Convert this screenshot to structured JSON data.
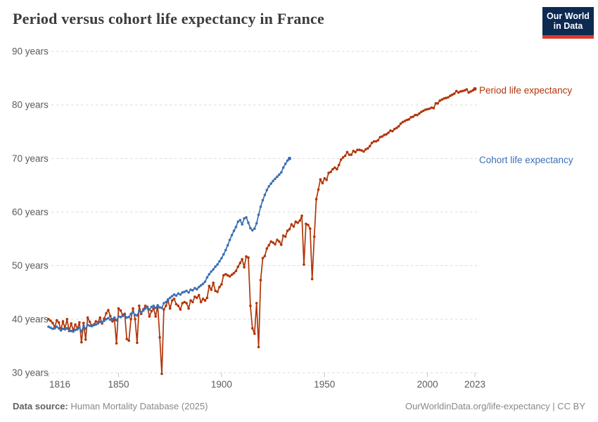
{
  "header": {
    "title": "Period versus cohort life expectancy in France",
    "logo_line1": "Our World",
    "logo_line2": "in Data"
  },
  "footer": {
    "source_label": "Data source:",
    "source_value": "Human Mortality Database (2025)",
    "right": "OurWorldinData.org/life-expectancy | CC BY"
  },
  "colors": {
    "period": "#B13507",
    "cohort": "#3B6FB5",
    "grid": "#DBDBDB",
    "tick_text": "#5B5B5B",
    "logo_navy": "#0C2A52",
    "logo_red": "#DC3A2C",
    "title_text": "#3C3C3C"
  },
  "chart_data": {
    "type": "line",
    "title": "Period versus cohort life expectancy in France",
    "xlabel": "",
    "ylabel": "",
    "x_ticks": [
      1816,
      1850,
      1900,
      1950,
      2000,
      2023
    ],
    "y_ticks": [
      30,
      40,
      50,
      60,
      70,
      80,
      90
    ],
    "y_tick_suffix": " years",
    "xlim": [
      1816,
      2023
    ],
    "ylim": [
      30,
      90
    ],
    "grid": "horizontal-dashed",
    "legend_position": "right-of-line-ends",
    "series": [
      {
        "name": "Period life expectancy",
        "color": "#B13507",
        "start_year": 1816,
        "values": [
          40.0,
          39.7,
          39.3,
          38.5,
          39.8,
          39.4,
          38.0,
          39.6,
          38.3,
          40.0,
          37.8,
          39.2,
          37.9,
          39.0,
          38.2,
          39.4,
          35.7,
          39.3,
          36.2,
          40.3,
          39.5,
          38.8,
          39.0,
          39.6,
          39.4,
          40.3,
          39.2,
          40.1,
          41.1,
          41.7,
          40.6,
          39.6,
          39.9,
          35.5,
          42.0,
          41.6,
          40.8,
          41.0,
          36.3,
          36.0,
          40.0,
          42.0,
          40.0,
          35.6,
          42.5,
          41.0,
          41.8,
          42.5,
          42.3,
          40.5,
          41.5,
          42.0,
          40.5,
          42.5,
          36.6,
          29.8,
          41.8,
          42.5,
          43.5,
          42.0,
          43.5,
          43.8,
          42.8,
          42.5,
          41.8,
          43.0,
          43.2,
          43.0,
          42.0,
          43.5,
          43.2,
          44.2,
          44.0,
          44.5,
          43.2,
          43.8,
          43.5,
          44.0,
          46.2,
          45.5,
          46.8,
          45.3,
          45.1,
          46.0,
          46.5,
          48.2,
          48.4,
          48.2,
          48.0,
          48.3,
          48.6,
          49.0,
          49.8,
          50.5,
          51.2,
          49.7,
          51.7,
          51.5,
          42.5,
          38.3,
          37.3,
          43.0,
          34.8,
          47.3,
          51.4,
          51.8,
          53.2,
          53.8,
          54.5,
          54.3,
          54.0,
          54.8,
          54.5,
          53.9,
          55.6,
          55.4,
          56.5,
          56.8,
          57.7,
          57.3,
          58.2,
          58.0,
          58.4,
          59.3,
          50.2,
          57.8,
          57.6,
          56.9,
          47.5,
          55.4,
          62.4,
          64.2,
          66.1,
          65.4,
          66.3,
          66.0,
          67.3,
          67.5,
          68.0,
          68.3,
          68.0,
          68.8,
          69.8,
          70.2,
          70.5,
          71.2,
          70.7,
          70.7,
          71.4,
          71.2,
          71.6,
          71.6,
          71.5,
          71.3,
          71.7,
          71.9,
          72.3,
          72.9,
          73.2,
          73.2,
          73.4,
          74.0,
          74.1,
          74.4,
          74.5,
          74.8,
          75.2,
          75.1,
          75.5,
          75.7,
          76.0,
          76.5,
          76.8,
          77.0,
          77.2,
          77.3,
          77.7,
          77.8,
          78.1,
          78.1,
          78.4,
          78.7,
          78.9,
          79.1,
          79.2,
          79.3,
          79.5,
          79.4,
          80.3,
          80.3,
          80.8,
          81.0,
          81.2,
          81.3,
          81.4,
          81.7,
          81.9,
          82.1,
          82.6,
          82.3,
          82.5,
          82.6,
          82.7,
          82.9,
          82.3,
          82.5,
          82.7,
          83.0
        ]
      },
      {
        "name": "Cohort life expectancy",
        "color": "#3B6FB5",
        "start_year": 1816,
        "values": [
          38.6,
          38.4,
          38.2,
          38.3,
          38.6,
          38.3,
          37.9,
          38.2,
          38.1,
          38.3,
          37.9,
          37.8,
          37.7,
          38.0,
          38.1,
          38.4,
          37.7,
          38.8,
          38.2,
          38.9,
          38.8,
          38.7,
          38.9,
          39.0,
          39.2,
          39.5,
          39.4,
          39.7,
          40.0,
          40.2,
          39.9,
          40.0,
          40.3,
          39.8,
          40.5,
          40.4,
          40.6,
          40.7,
          40.3,
          40.4,
          41.0,
          41.3,
          40.8,
          40.7,
          41.5,
          41.3,
          41.6,
          42.0,
          42.2,
          41.8,
          42.3,
          42.5,
          42.1,
          42.6,
          42.2,
          42.1,
          43.0,
          43.2,
          43.7,
          44.0,
          44.3,
          44.6,
          44.4,
          44.8,
          44.6,
          45.0,
          45.1,
          45.3,
          45.0,
          45.5,
          45.4,
          45.8,
          45.6,
          46.0,
          46.3,
          46.6,
          47.0,
          47.8,
          48.4,
          48.9,
          49.3,
          49.8,
          50.2,
          50.8,
          51.4,
          52.1,
          52.9,
          53.8,
          54.8,
          55.7,
          56.5,
          57.2,
          58.2,
          58.5,
          57.7,
          58.8,
          59.0,
          58.0,
          57.0,
          56.6,
          56.9,
          57.9,
          59.5,
          61.0,
          62.2,
          63.2,
          64.1,
          64.8,
          65.3,
          65.8,
          66.2,
          66.6,
          67.0,
          67.4,
          68.3,
          69.0,
          69.6,
          70.0
        ]
      }
    ]
  }
}
